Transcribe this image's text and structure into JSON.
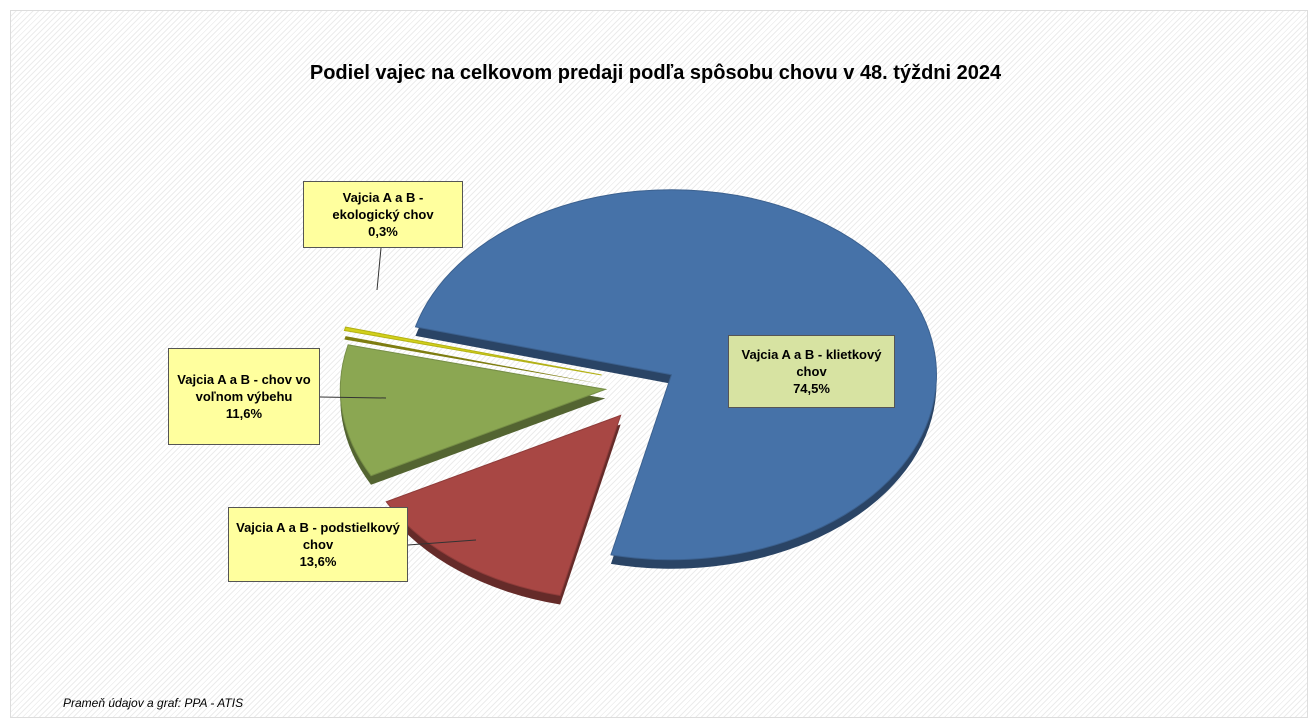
{
  "chart_data": {
    "type": "pie",
    "title": "Podiel vajec na celkovom predaji podľa spôsobu chovu v 48. týždni 2024",
    "categories": [
      "Vajcia A a B - klietkový chov",
      "Vajcia A a B - podstielkový chov",
      "Vajcia A a B - chov vo voľnom výbehu",
      "Vajcia A a B - ekologický chov"
    ],
    "values": [
      74.5,
      13.6,
      11.6,
      0.3
    ],
    "value_labels": [
      "74,5%",
      "13,6%",
      "11,6%",
      "0,3%"
    ],
    "colors": [
      "#4672a8",
      "#a84744",
      "#8ba752",
      "#d2d01a"
    ],
    "source": "Prameň údajov a graf: PPA - ATIS"
  }
}
